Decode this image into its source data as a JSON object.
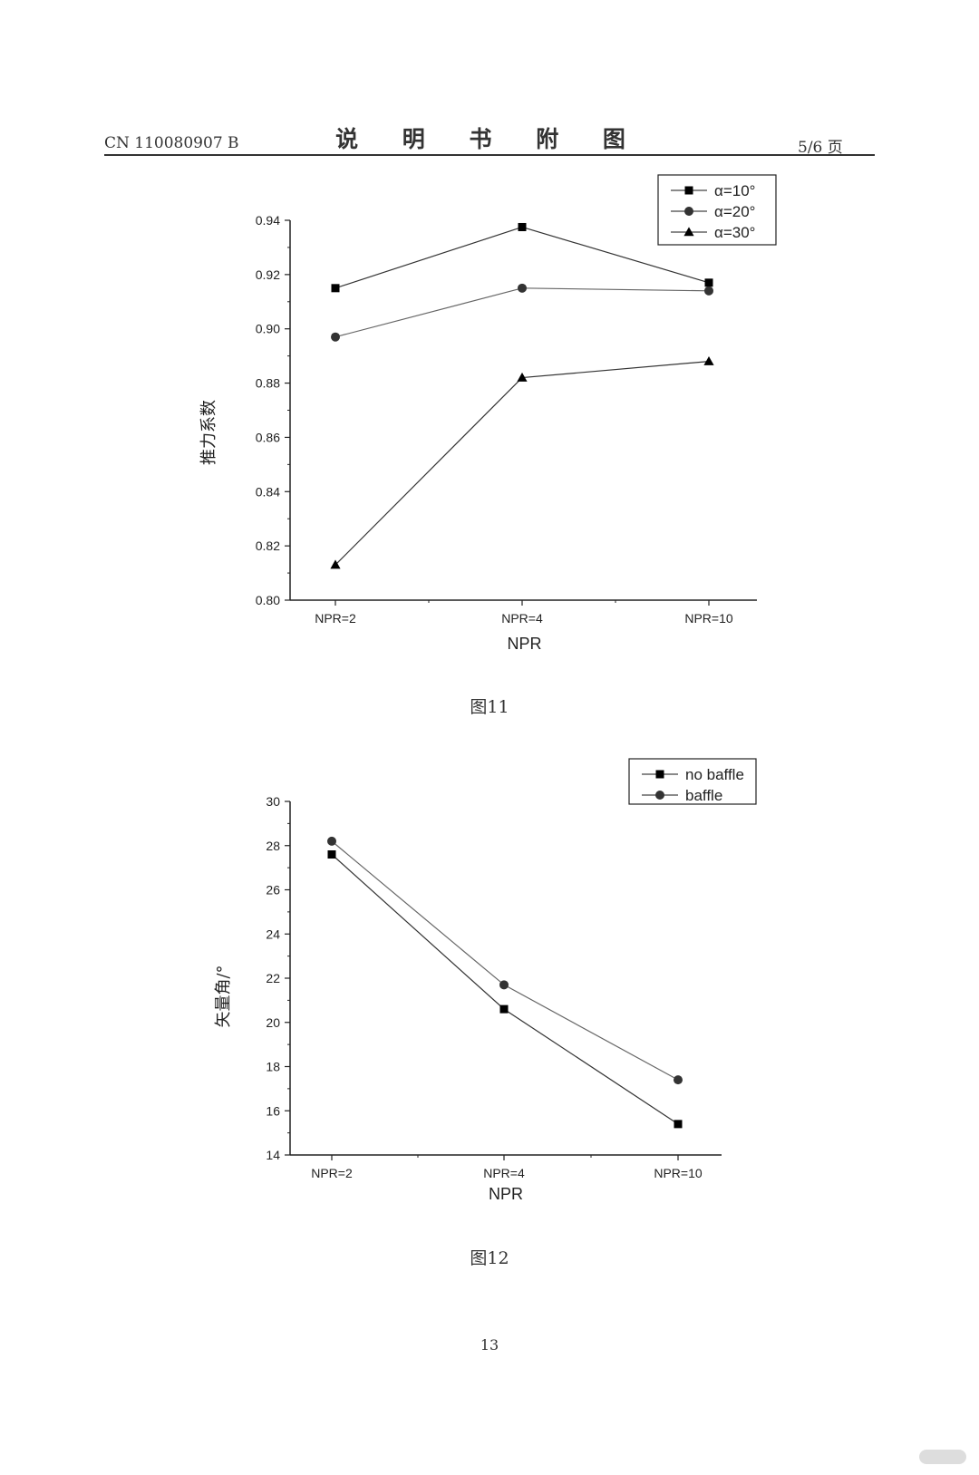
{
  "header": {
    "doc_id": "CN 110080907 B",
    "title": "说 明 书 附 图",
    "page": "5/6 页"
  },
  "footer": {
    "page_number": "13"
  },
  "chart_data": [
    {
      "type": "line",
      "caption": "图11",
      "categories": [
        "NPR=2",
        "NPR=4",
        "NPR=10"
      ],
      "xlabel": "NPR",
      "ylabel": "推力系数",
      "ylim": [
        0.8,
        0.94
      ],
      "yticks": [
        0.8,
        0.82,
        0.84,
        0.86,
        0.88,
        0.9,
        0.92,
        0.94
      ],
      "ytick_labels": [
        "0.80",
        "0.82",
        "0.84",
        "0.86",
        "0.88",
        "0.90",
        "0.92",
        "0.94"
      ],
      "legend_position": "top-right",
      "grid": false,
      "series": [
        {
          "name": "α=10°",
          "marker": "square",
          "values": [
            0.915,
            0.9375,
            0.917
          ]
        },
        {
          "name": "α=20°",
          "marker": "circle",
          "values": [
            0.897,
            0.915,
            0.914
          ]
        },
        {
          "name": "α=30°",
          "marker": "triangle",
          "values": [
            0.813,
            0.882,
            0.888
          ]
        }
      ]
    },
    {
      "type": "line",
      "caption": "图12",
      "categories": [
        "NPR=2",
        "NPR=4",
        "NPR=10"
      ],
      "xlabel": "NPR",
      "ylabel": "矢量角/°",
      "ylim": [
        14,
        30
      ],
      "yticks": [
        14,
        16,
        18,
        20,
        22,
        24,
        26,
        28,
        30
      ],
      "ytick_labels": [
        "14",
        "16",
        "18",
        "20",
        "22",
        "24",
        "26",
        "28",
        "30"
      ],
      "legend_position": "top-right",
      "grid": false,
      "series": [
        {
          "name": "no baffle",
          "marker": "square",
          "values": [
            27.6,
            20.6,
            15.4
          ]
        },
        {
          "name": "baffle",
          "marker": "circle",
          "values": [
            28.2,
            21.7,
            17.4
          ]
        }
      ]
    }
  ]
}
